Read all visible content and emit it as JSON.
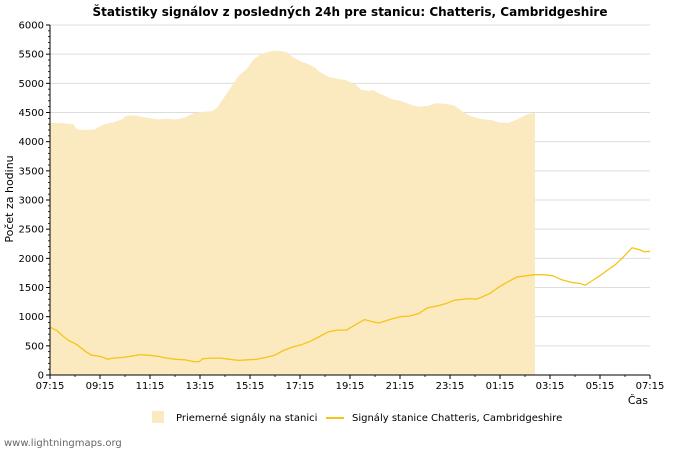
{
  "chart_data": {
    "type": "area",
    "title": "Štatistiky signálov z posledných 24h pre stanicu: Chatteris, Cambridgeshire",
    "xlabel": "Čas",
    "ylabel": "Počet za hodinu",
    "ylim": [
      0,
      6000
    ],
    "yticks": [
      0,
      500,
      1000,
      1500,
      2000,
      2500,
      3000,
      3500,
      4000,
      4500,
      5000,
      5500,
      6000
    ],
    "xtick_labels": [
      "07:15",
      "09:15",
      "11:15",
      "13:15",
      "15:15",
      "17:15",
      "19:15",
      "21:15",
      "23:15",
      "01:15",
      "03:15",
      "05:15",
      "07:15"
    ],
    "x_hours_range": [
      0,
      24
    ],
    "grid": "horizontal",
    "series": [
      {
        "name": "Priemerné signály na stanici",
        "kind": "area",
        "color": "#fbe9c0",
        "points": [
          [
            0,
            4320
          ],
          [
            0.5,
            4320
          ],
          [
            1,
            4310
          ],
          [
            1.3,
            4300
          ],
          [
            1.5,
            4210
          ],
          [
            1.8,
            4200
          ],
          [
            2.5,
            4210
          ],
          [
            3,
            4300
          ],
          [
            3.5,
            4330
          ],
          [
            4,
            4380
          ],
          [
            4.2,
            4440
          ],
          [
            4.8,
            4450
          ],
          [
            5,
            4430
          ],
          [
            5.6,
            4400
          ],
          [
            6,
            4380
          ],
          [
            6.5,
            4390
          ],
          [
            7,
            4380
          ],
          [
            7.5,
            4410
          ],
          [
            8,
            4490
          ],
          [
            8.5,
            4510
          ],
          [
            9,
            4520
          ],
          [
            9.3,
            4580
          ],
          [
            9.6,
            4720
          ],
          [
            10,
            4900
          ],
          [
            10.5,
            5130
          ],
          [
            11,
            5260
          ],
          [
            11.3,
            5400
          ],
          [
            11.8,
            5510
          ],
          [
            12.3,
            5550
          ],
          [
            12.8,
            5560
          ],
          [
            13.2,
            5530
          ],
          [
            13.5,
            5450
          ],
          [
            14,
            5370
          ],
          [
            14.3,
            5340
          ],
          [
            14.7,
            5280
          ],
          [
            15,
            5200
          ],
          [
            15.5,
            5110
          ],
          [
            16,
            5080
          ],
          [
            16.5,
            5050
          ],
          [
            17,
            4980
          ],
          [
            17.3,
            4890
          ],
          [
            17.7,
            4870
          ],
          [
            18,
            4880
          ],
          [
            18.3,
            4830
          ],
          [
            18.7,
            4780
          ],
          [
            19,
            4730
          ],
          [
            19.5,
            4700
          ],
          [
            20,
            4640
          ],
          [
            20.5,
            4600
          ],
          [
            21,
            4610
          ],
          [
            21.5,
            4660
          ],
          [
            22,
            4650
          ],
          [
            22.5,
            4620
          ],
          [
            23,
            4510
          ],
          [
            23.3,
            4450
          ],
          [
            23.8,
            4400
          ],
          [
            24.2,
            4380
          ],
          [
            24.6,
            4370
          ],
          [
            25,
            4330
          ],
          [
            25.5,
            4320
          ],
          [
            26,
            4380
          ],
          [
            26.5,
            4460
          ],
          [
            27,
            4500
          ]
        ]
      },
      {
        "name": "Signály stanice Chatteris, Cambridgeshire",
        "kind": "line",
        "color": "#f5c518",
        "points": [
          [
            0,
            820
          ],
          [
            0.4,
            760
          ],
          [
            0.7,
            670
          ],
          [
            1,
            600
          ],
          [
            1.5,
            520
          ],
          [
            2,
            400
          ],
          [
            2.3,
            340
          ],
          [
            2.6,
            330
          ],
          [
            3,
            300
          ],
          [
            3.2,
            270
          ],
          [
            3.5,
            290
          ],
          [
            4,
            300
          ],
          [
            4.5,
            320
          ],
          [
            5,
            350
          ],
          [
            5.5,
            340
          ],
          [
            6,
            320
          ],
          [
            6.5,
            290
          ],
          [
            7,
            270
          ],
          [
            7.5,
            260
          ],
          [
            8,
            230
          ],
          [
            8.3,
            230
          ],
          [
            8.5,
            280
          ],
          [
            9,
            290
          ],
          [
            9.5,
            290
          ],
          [
            10,
            270
          ],
          [
            10.5,
            250
          ],
          [
            11,
            260
          ],
          [
            11.5,
            270
          ],
          [
            12,
            300
          ],
          [
            12.5,
            340
          ],
          [
            13,
            420
          ],
          [
            13.5,
            480
          ],
          [
            14,
            520
          ],
          [
            14.5,
            580
          ],
          [
            15,
            660
          ],
          [
            15.5,
            740
          ],
          [
            16,
            770
          ],
          [
            16.5,
            770
          ],
          [
            17,
            860
          ],
          [
            17.5,
            950
          ],
          [
            18,
            910
          ],
          [
            18.3,
            890
          ],
          [
            18.7,
            930
          ],
          [
            19,
            960
          ],
          [
            19.5,
            1000
          ],
          [
            20,
            1010
          ],
          [
            20.5,
            1050
          ],
          [
            21,
            1150
          ],
          [
            21.5,
            1180
          ],
          [
            22,
            1220
          ],
          [
            22.5,
            1280
          ],
          [
            23,
            1300
          ],
          [
            23.3,
            1310
          ],
          [
            23.7,
            1300
          ],
          [
            24,
            1330
          ],
          [
            24.5,
            1400
          ],
          [
            25,
            1510
          ],
          [
            25.5,
            1600
          ],
          [
            26,
            1680
          ],
          [
            26.5,
            1700
          ],
          [
            27,
            1720
          ],
          [
            27.5,
            1720
          ],
          [
            28,
            1700
          ],
          [
            28.5,
            1630
          ],
          [
            29,
            1590
          ],
          [
            29.5,
            1570
          ],
          [
            29.8,
            1540
          ],
          [
            30.2,
            1620
          ],
          [
            30.6,
            1700
          ],
          [
            31,
            1790
          ],
          [
            31.5,
            1900
          ],
          [
            32,
            2050
          ],
          [
            32.4,
            2180
          ],
          [
            32.8,
            2150
          ],
          [
            33.1,
            2110
          ],
          [
            33.4,
            2120
          ]
        ]
      }
    ],
    "legend_position": "bottom"
  },
  "watermark": "www.lightningmaps.org"
}
